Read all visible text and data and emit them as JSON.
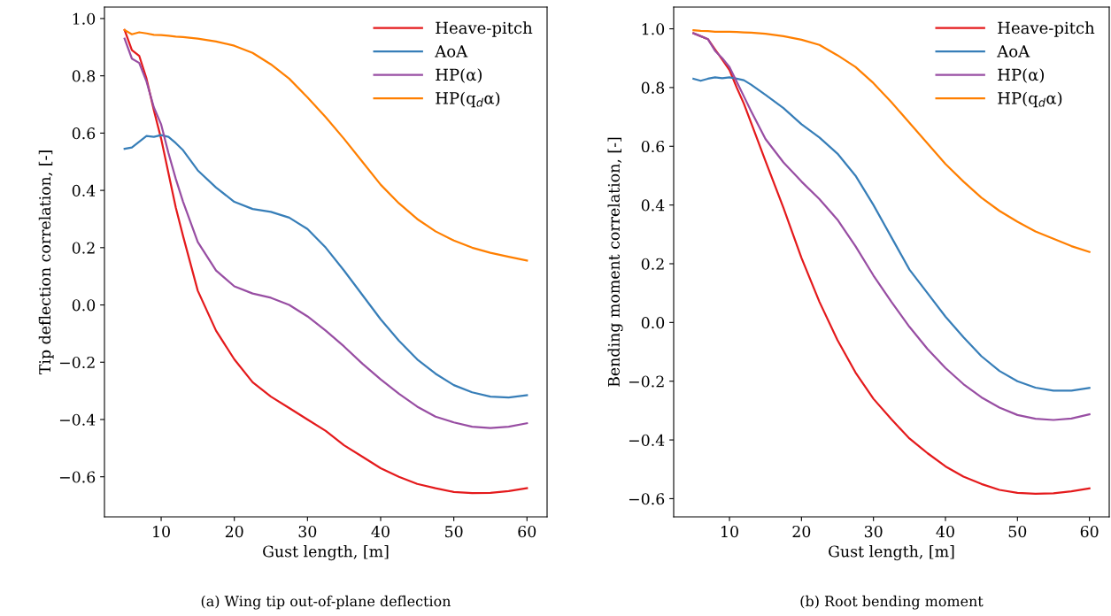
{
  "chart_data": [
    {
      "type": "line",
      "xlabel": "Gust length, [m]",
      "ylabel": "Tip deflection correlation, [-]",
      "annotations": [
        "(a) Wing tip out-of-plane deflection"
      ],
      "x": [
        5,
        6,
        7,
        8,
        9,
        10,
        11,
        12,
        13,
        15,
        17.5,
        20,
        22.5,
        25,
        27.5,
        30,
        32.5,
        35,
        37.5,
        40,
        42.5,
        45,
        47.5,
        50,
        52.5,
        55,
        57.5,
        60
      ],
      "series": [
        {
          "name": "Heave-pitch",
          "color": "#e41a1c",
          "values": [
            0.96,
            0.89,
            0.87,
            0.79,
            0.68,
            0.58,
            0.46,
            0.34,
            0.24,
            0.05,
            -0.09,
            -0.19,
            -0.27,
            -0.32,
            -0.36,
            -0.4,
            -0.44,
            -0.49,
            -0.53,
            -0.57,
            -0.6,
            -0.625,
            -0.64,
            -0.653,
            -0.657,
            -0.656,
            -0.65,
            -0.64
          ]
        },
        {
          "name": "AoA",
          "color": "#377eb8",
          "values": [
            0.545,
            0.55,
            0.57,
            0.59,
            0.587,
            0.593,
            0.587,
            0.565,
            0.54,
            0.47,
            0.41,
            0.36,
            0.335,
            0.325,
            0.305,
            0.265,
            0.2,
            0.12,
            0.035,
            -0.05,
            -0.125,
            -0.19,
            -0.24,
            -0.28,
            -0.305,
            -0.32,
            -0.323,
            -0.315
          ]
        },
        {
          "name": "HP(α)",
          "color": "#984ea3",
          "values": [
            0.93,
            0.86,
            0.845,
            0.78,
            0.69,
            0.63,
            0.53,
            0.44,
            0.36,
            0.22,
            0.12,
            0.065,
            0.04,
            0.025,
            0.0,
            -0.04,
            -0.09,
            -0.145,
            -0.205,
            -0.26,
            -0.31,
            -0.355,
            -0.39,
            -0.41,
            -0.425,
            -0.43,
            -0.425,
            -0.413
          ]
        },
        {
          "name": "HP(q$_{d}$α)",
          "color": "#ff7f00",
          "values": [
            0.96,
            0.945,
            0.952,
            0.948,
            0.943,
            0.942,
            0.94,
            0.937,
            0.935,
            0.93,
            0.92,
            0.905,
            0.88,
            0.84,
            0.79,
            0.725,
            0.655,
            0.58,
            0.5,
            0.42,
            0.355,
            0.3,
            0.257,
            0.225,
            0.2,
            0.182,
            0.168,
            0.155
          ]
        }
      ],
      "xlim": [
        2.25,
        62.75
      ],
      "xticks": [
        10,
        20,
        30,
        40,
        50,
        60
      ],
      "ylim": [
        -0.74,
        1.04
      ],
      "yticks": [
        {
          "value": -0.6,
          "label": "−0.6"
        },
        {
          "value": -0.4,
          "label": "−0.4"
        },
        {
          "value": -0.2,
          "label": "−0.2"
        },
        {
          "value": 0,
          "label": "0.0"
        },
        {
          "value": 0.2,
          "label": "0.2"
        },
        {
          "value": 0.4,
          "label": "0.4"
        },
        {
          "value": 0.6,
          "label": "0.6"
        },
        {
          "value": 0.8,
          "label": "0.8"
        },
        {
          "value": 1,
          "label": "1.0"
        }
      ],
      "legend": "top right",
      "grid": false
    },
    {
      "type": "line",
      "xlabel": "Gust length, [m]",
      "ylabel": "Bending moment correlation, [-]",
      "annotations": [
        "(b) Root bending moment"
      ],
      "x": [
        5,
        6,
        7,
        8,
        9,
        10,
        11,
        12,
        13,
        15,
        17.5,
        20,
        22.5,
        25,
        27.5,
        30,
        32.5,
        35,
        37.5,
        40,
        42.5,
        45,
        47.5,
        50,
        52.5,
        55,
        57.5,
        60
      ],
      "series": [
        {
          "name": "Heave-pitch",
          "color": "#e41a1c",
          "values": [
            0.985,
            0.975,
            0.965,
            0.93,
            0.895,
            0.86,
            0.8,
            0.745,
            0.68,
            0.55,
            0.39,
            0.22,
            0.07,
            -0.06,
            -0.17,
            -0.26,
            -0.33,
            -0.395,
            -0.445,
            -0.49,
            -0.525,
            -0.55,
            -0.57,
            -0.58,
            -0.583,
            -0.582,
            -0.575,
            -0.565
          ]
        },
        {
          "name": "AoA",
          "color": "#377eb8",
          "values": [
            0.83,
            0.823,
            0.83,
            0.835,
            0.832,
            0.835,
            0.83,
            0.825,
            0.81,
            0.775,
            0.73,
            0.675,
            0.63,
            0.575,
            0.5,
            0.4,
            0.29,
            0.18,
            0.1,
            0.02,
            -0.05,
            -0.115,
            -0.165,
            -0.2,
            -0.222,
            -0.232,
            -0.232,
            -0.223
          ]
        },
        {
          "name": "HP(α)",
          "color": "#984ea3",
          "values": [
            0.985,
            0.975,
            0.965,
            0.925,
            0.9,
            0.87,
            0.82,
            0.77,
            0.72,
            0.625,
            0.545,
            0.48,
            0.42,
            0.35,
            0.26,
            0.16,
            0.07,
            -0.015,
            -0.09,
            -0.155,
            -0.21,
            -0.255,
            -0.29,
            -0.315,
            -0.328,
            -0.332,
            -0.327,
            -0.313
          ]
        },
        {
          "name": "HP(q$_{d}$α)",
          "color": "#ff7f00",
          "values": [
            0.995,
            0.993,
            0.992,
            0.99,
            0.99,
            0.99,
            0.989,
            0.988,
            0.987,
            0.983,
            0.975,
            0.963,
            0.945,
            0.91,
            0.87,
            0.815,
            0.75,
            0.68,
            0.61,
            0.54,
            0.48,
            0.425,
            0.38,
            0.343,
            0.31,
            0.285,
            0.26,
            0.24
          ]
        }
      ],
      "xlim": [
        2.25,
        62.75
      ],
      "xticks": [
        10,
        20,
        30,
        40,
        50,
        60
      ],
      "ylim": [
        -0.662,
        1.074
      ],
      "yticks": [
        {
          "value": -0.6,
          "label": "−0.6"
        },
        {
          "value": -0.4,
          "label": "−0.4"
        },
        {
          "value": -0.2,
          "label": "−0.2"
        },
        {
          "value": 0,
          "label": "0.0"
        },
        {
          "value": 0.2,
          "label": "0.2"
        },
        {
          "value": 0.4,
          "label": "0.4"
        },
        {
          "value": 0.6,
          "label": "0.6"
        },
        {
          "value": 0.8,
          "label": "0.8"
        },
        {
          "value": 1,
          "label": "1.0"
        }
      ],
      "legend": "top right",
      "grid": false
    }
  ]
}
